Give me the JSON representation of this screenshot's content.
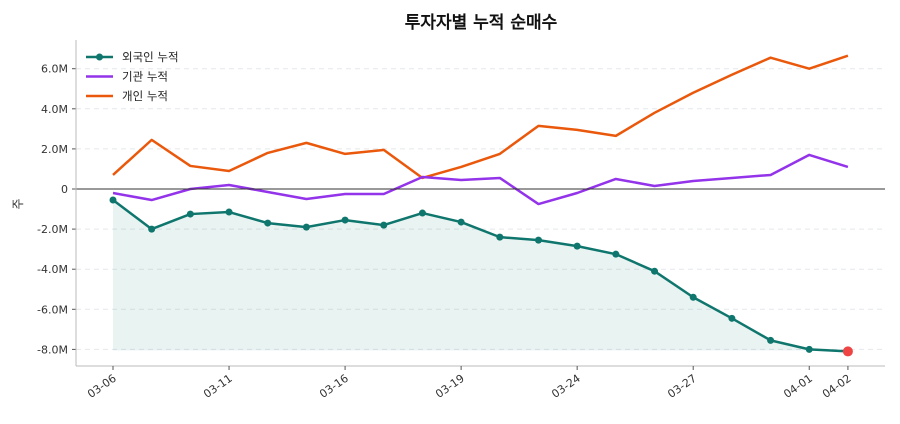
{
  "chart_data": {
    "type": "line",
    "title": "투자자별 누적 순매수",
    "xlabel": "",
    "ylabel": "주",
    "categories": [
      "03-06",
      "",
      "",
      "03-11",
      "",
      "",
      "03-16",
      "",
      "",
      "03-19",
      "",
      "",
      "03-24",
      "",
      "",
      "03-27",
      "",
      "",
      "04-01",
      "04-02"
    ],
    "ylim": [
      -8.8,
      7.4
    ],
    "yticks": [
      -8,
      -6,
      -4,
      -2,
      0,
      2,
      4,
      6
    ],
    "ytick_labels": [
      "-8.0M",
      "-6.0M",
      "-4.0M",
      "-2.0M",
      "0",
      "2.0M",
      "4.0M",
      "6.0M"
    ],
    "grid": "horizontal dashed",
    "legend": "top-left",
    "series": [
      {
        "name": "외국인 누적",
        "color": "#0f766e",
        "markers": true,
        "fill": true,
        "values": [
          -0.55,
          -2.0,
          -1.25,
          -1.15,
          -1.7,
          -1.9,
          -1.55,
          -1.8,
          -1.2,
          -1.65,
          -2.4,
          -2.55,
          -2.85,
          -3.25,
          -4.1,
          -5.4,
          -6.45,
          -7.55,
          -8.0,
          -8.1
        ]
      },
      {
        "name": "기관 누적",
        "color": "#9333ea",
        "markers": false,
        "values": [
          -0.2,
          -0.55,
          0.0,
          0.2,
          -0.15,
          -0.5,
          -0.25,
          -0.25,
          0.6,
          0.45,
          0.55,
          -0.75,
          -0.2,
          0.5,
          0.15,
          0.4,
          0.55,
          0.7,
          1.7,
          1.1
        ]
      },
      {
        "name": "개인 누적",
        "color": "#ea580c",
        "markers": false,
        "values": [
          0.7,
          2.45,
          1.15,
          0.9,
          1.8,
          2.3,
          1.75,
          1.95,
          0.55,
          1.1,
          1.75,
          3.15,
          2.95,
          2.65,
          3.8,
          4.8,
          5.7,
          6.55,
          6.0,
          6.65
        ]
      }
    ],
    "highlight_last_point_color": "#ef4444"
  }
}
